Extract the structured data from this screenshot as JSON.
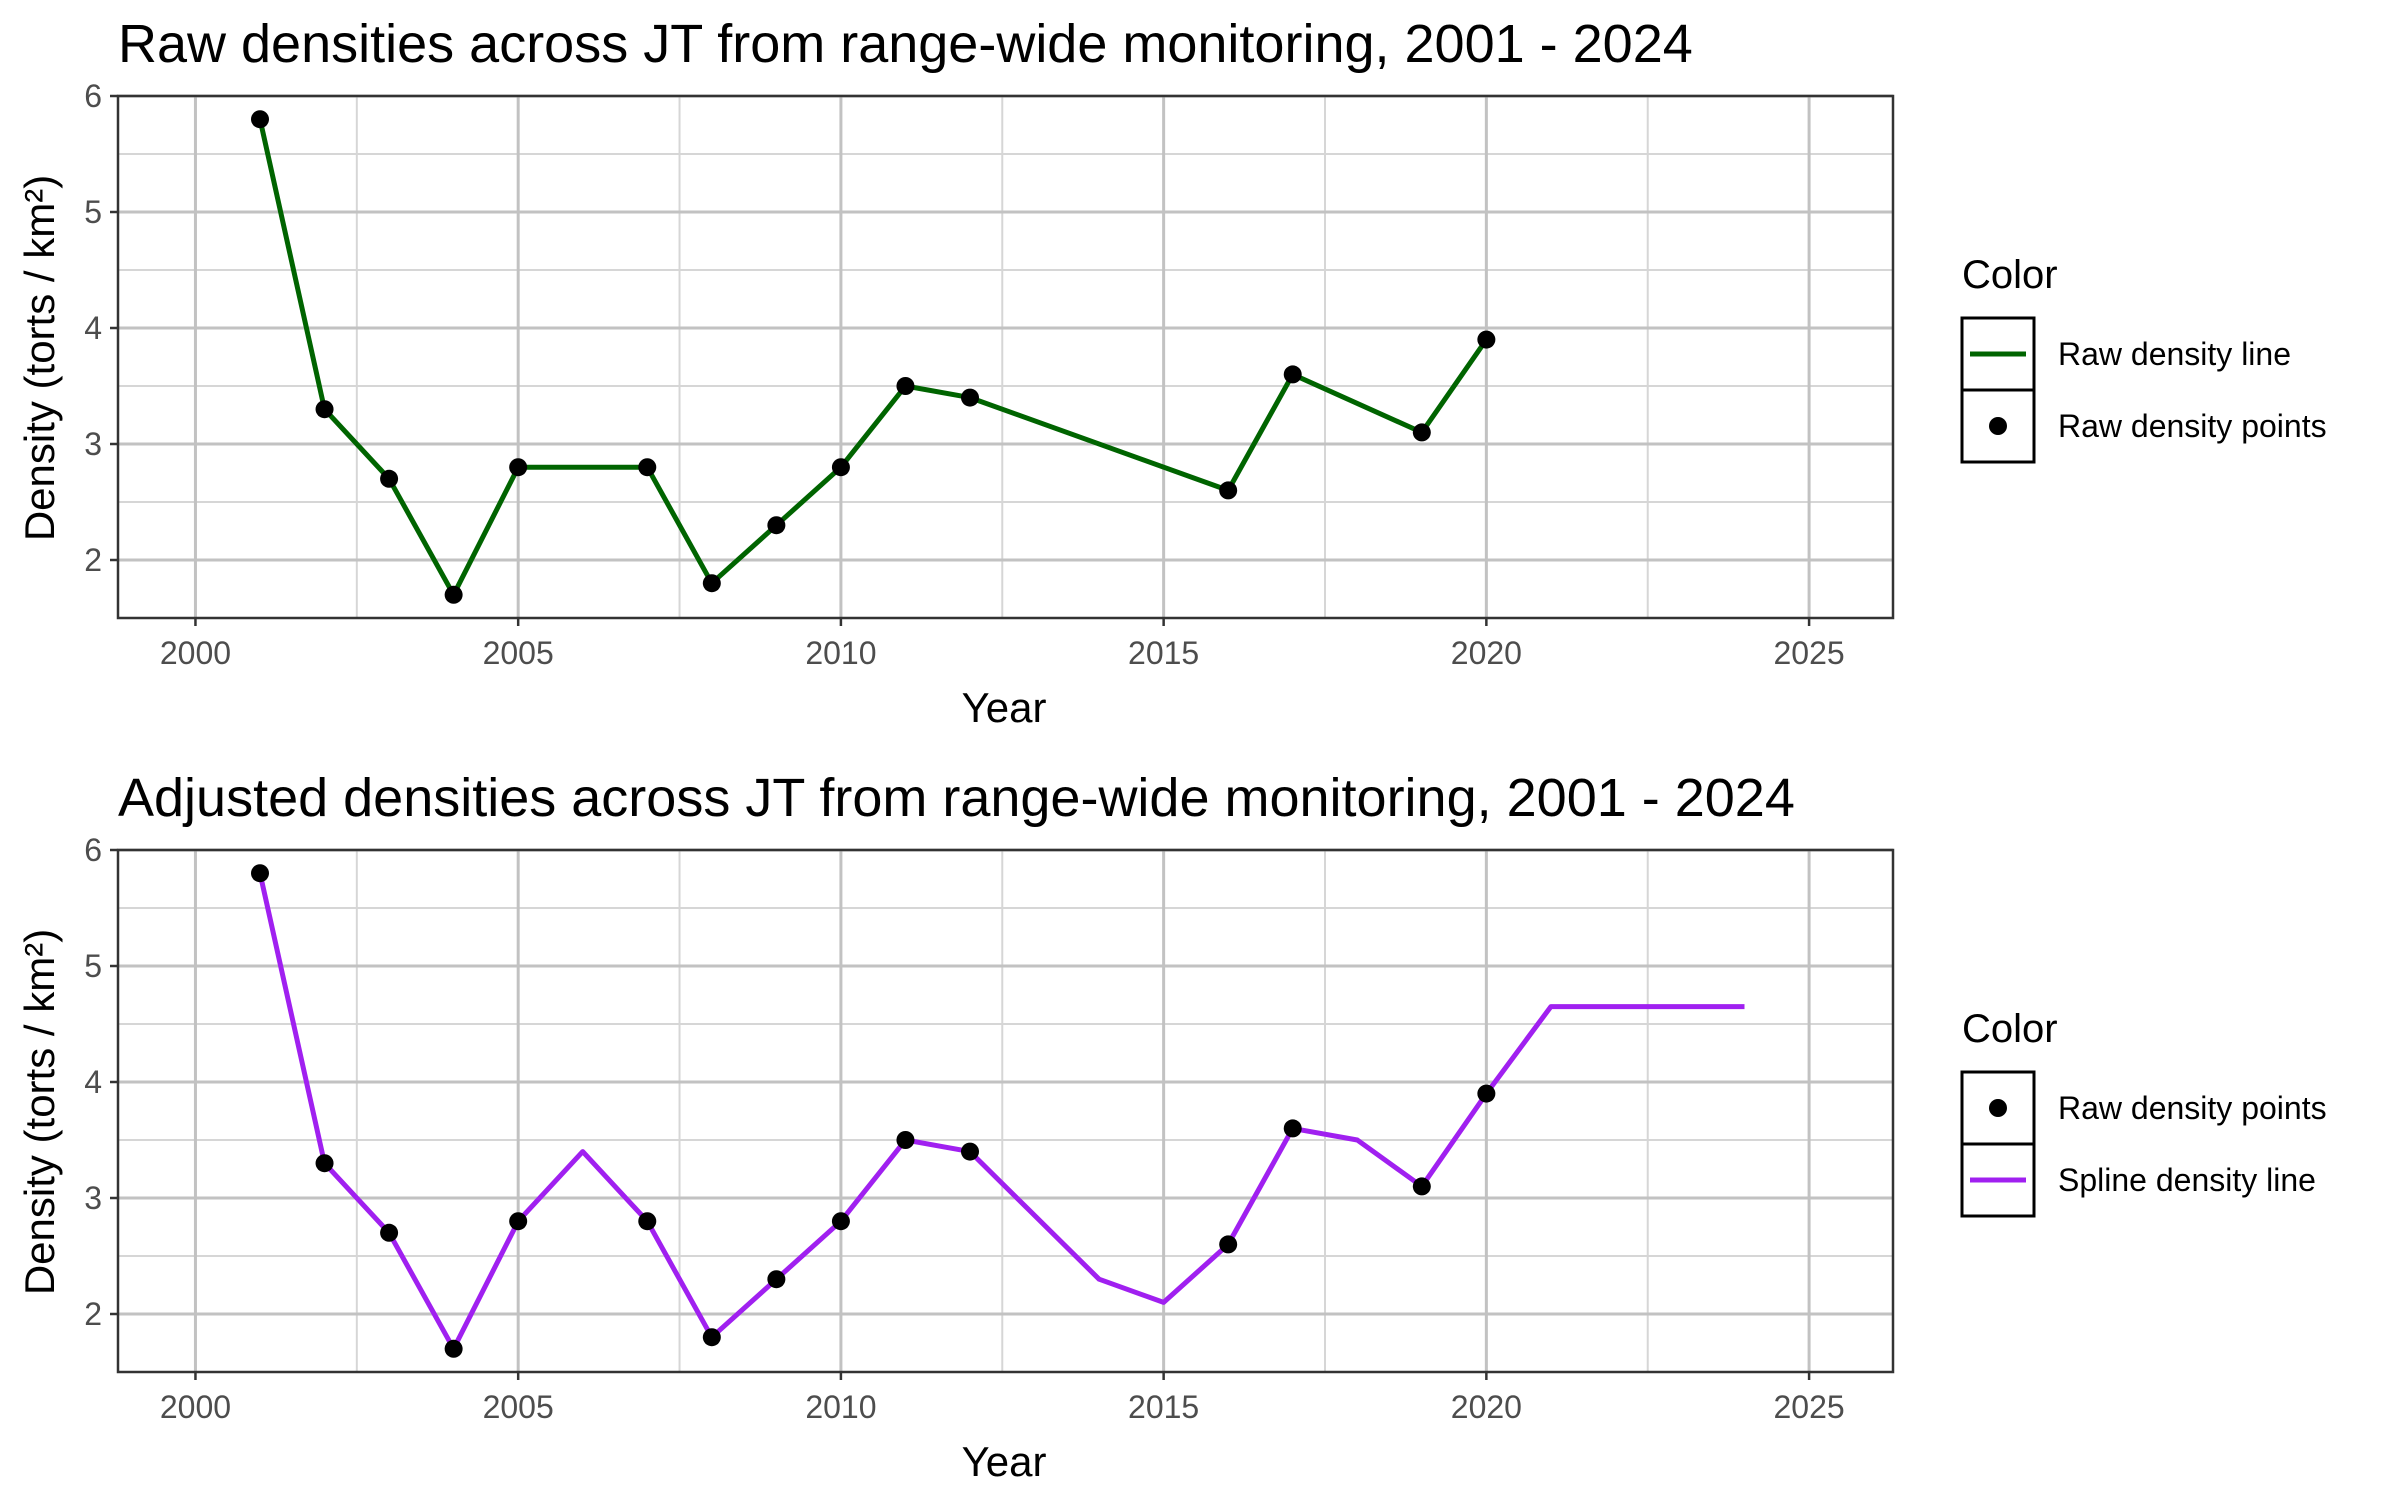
{
  "chart_data": [
    {
      "type": "line",
      "title": "Raw densities across JT from range-wide monitoring, 2001 - 2024",
      "xlabel": "Year",
      "ylabel": "Density (torts / km²)",
      "xlim": [
        1998.8,
        2026.3
      ],
      "ylim": [
        1.5,
        6.0
      ],
      "x_ticks": [
        2000,
        2005,
        2010,
        2015,
        2020,
        2025
      ],
      "y_ticks": [
        2,
        3,
        4,
        5,
        6
      ],
      "grid": true,
      "legend": {
        "title": "Color",
        "placement": "right",
        "entries": [
          {
            "label": "Raw density line",
            "kind": "line",
            "color": "#006400"
          },
          {
            "label": "Raw density points",
            "kind": "point",
            "color": "#000000"
          }
        ]
      },
      "series": [
        {
          "name": "Raw density line",
          "kind": "line",
          "color": "#006400",
          "x": [
            2001,
            2002,
            2003,
            2004,
            2005,
            2007,
            2008,
            2009,
            2010,
            2011,
            2012,
            2016,
            2017,
            2019,
            2020
          ],
          "y": [
            5.8,
            3.3,
            2.7,
            1.7,
            2.8,
            2.8,
            1.8,
            2.3,
            2.8,
            3.5,
            3.4,
            2.6,
            3.6,
            3.1,
            3.9
          ]
        },
        {
          "name": "Raw density points",
          "kind": "point",
          "color": "#000000",
          "x": [
            2001,
            2002,
            2003,
            2004,
            2005,
            2007,
            2008,
            2009,
            2010,
            2011,
            2012,
            2016,
            2017,
            2019,
            2020
          ],
          "y": [
            5.8,
            3.3,
            2.7,
            1.7,
            2.8,
            2.8,
            1.8,
            2.3,
            2.8,
            3.5,
            3.4,
            2.6,
            3.6,
            3.1,
            3.9
          ]
        }
      ]
    },
    {
      "type": "line",
      "title": "Adjusted densities across JT from range-wide monitoring, 2001 - 2024",
      "xlabel": "Year",
      "ylabel": "Density (torts / km²)",
      "xlim": [
        1998.8,
        2026.3
      ],
      "ylim": [
        1.5,
        6.0
      ],
      "x_ticks": [
        2000,
        2005,
        2010,
        2015,
        2020,
        2025
      ],
      "y_ticks": [
        2,
        3,
        4,
        5,
        6
      ],
      "grid": true,
      "legend": {
        "title": "Color",
        "placement": "right",
        "entries": [
          {
            "label": "Raw density points",
            "kind": "point",
            "color": "#000000"
          },
          {
            "label": "Spline density line",
            "kind": "line",
            "color": "#a020f0"
          }
        ]
      },
      "series": [
        {
          "name": "Spline density line",
          "kind": "line",
          "color": "#a020f0",
          "x": [
            2001,
            2002,
            2003,
            2004,
            2005,
            2006,
            2007,
            2008,
            2009,
            2010,
            2011,
            2012,
            2013,
            2014,
            2015,
            2016,
            2017,
            2018,
            2019,
            2020,
            2021,
            2022,
            2023,
            2024
          ],
          "y": [
            5.8,
            3.3,
            2.7,
            1.7,
            2.8,
            3.4,
            2.8,
            1.8,
            2.3,
            2.8,
            3.5,
            3.4,
            2.85,
            2.3,
            2.1,
            2.6,
            3.6,
            3.5,
            3.1,
            3.9,
            4.65,
            4.65,
            4.65,
            4.65
          ]
        },
        {
          "name": "Raw density points",
          "kind": "point",
          "color": "#000000",
          "x": [
            2001,
            2002,
            2003,
            2004,
            2005,
            2007,
            2008,
            2009,
            2010,
            2011,
            2012,
            2016,
            2017,
            2019,
            2020
          ],
          "y": [
            5.8,
            3.3,
            2.7,
            1.7,
            2.8,
            2.8,
            1.8,
            2.3,
            2.8,
            3.5,
            3.4,
            2.6,
            3.6,
            3.1,
            3.9
          ]
        }
      ]
    }
  ]
}
